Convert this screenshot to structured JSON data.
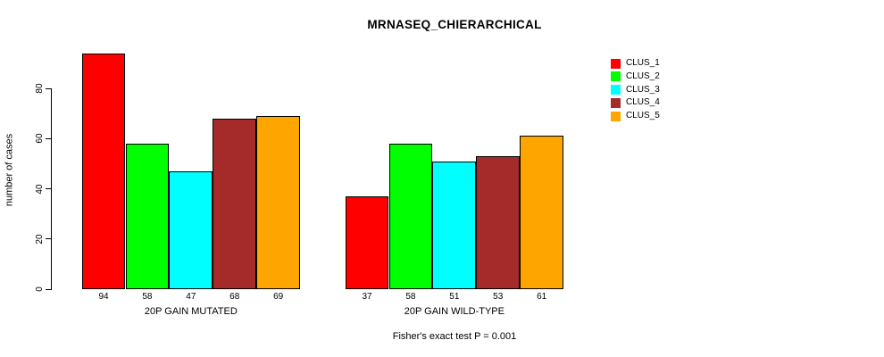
{
  "chart_data": {
    "type": "bar",
    "title": "MRNASEQ_CHIERARCHICAL",
    "ylabel": "number of cases",
    "xlabel": "",
    "categories": [
      "20P GAIN MUTATED",
      "20P GAIN WILD-TYPE"
    ],
    "series": [
      {
        "name": "CLUS_1",
        "color": "#ff0000",
        "values": [
          94,
          37
        ]
      },
      {
        "name": "CLUS_2",
        "color": "#00ff00",
        "values": [
          58,
          58
        ]
      },
      {
        "name": "CLUS_3",
        "color": "#00ffff",
        "values": [
          47,
          51
        ]
      },
      {
        "name": "CLUS_4",
        "color": "#a52a2a",
        "values": [
          68,
          53
        ]
      },
      {
        "name": "CLUS_5",
        "color": "#ffa500",
        "values": [
          69,
          61
        ]
      }
    ],
    "bar_value_labels": [
      [
        94,
        58,
        47,
        68,
        69
      ],
      [
        37,
        58,
        51,
        53,
        61
      ]
    ],
    "yticks": [
      0,
      20,
      40,
      60,
      80
    ],
    "ylim": [
      0,
      94
    ],
    "grid": false,
    "legend_position": "right",
    "legend_entries": [
      "CLUS_1",
      "CLUS_2",
      "CLUS_3",
      "CLUS_4",
      "CLUS_5"
    ],
    "annotation": "Fisher's exact test P = 0.001",
    "bar_border_color": "#000000",
    "axis_color": "#000000",
    "background_color": "#ffffff"
  }
}
